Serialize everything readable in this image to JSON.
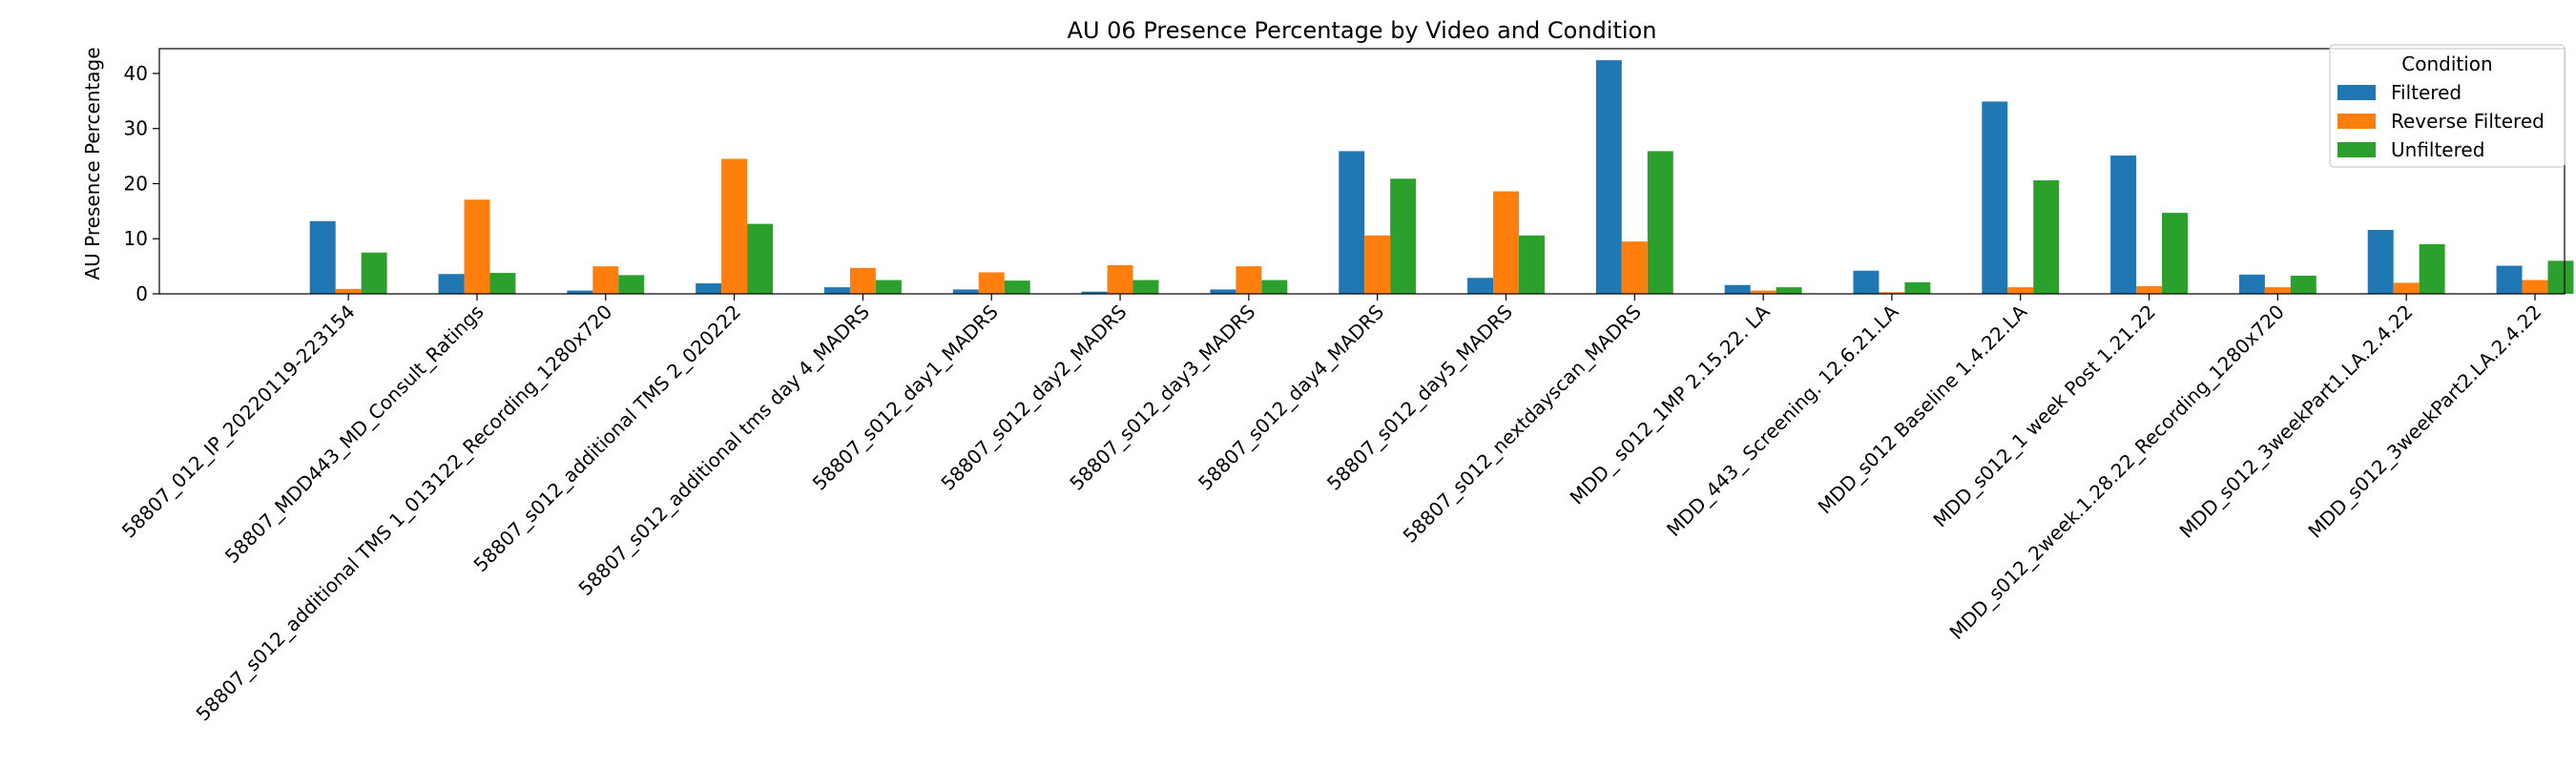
{
  "chart_data": {
    "type": "bar",
    "title": "AU 06 Presence Percentage by Video and Condition",
    "xlabel": "",
    "ylabel": "AU Presence Percentage",
    "ylim": [
      0,
      44.5
    ],
    "yticks": [
      0,
      10,
      20,
      30,
      40
    ],
    "grid": false,
    "legend": {
      "title": "Condition",
      "placement": "top-right"
    },
    "categories": [
      "58807_012_IP_20220119-223154",
      "58807_MDD443_MD_Consult_Ratings",
      "58807_s012_additional TMS 1_013122_Recording_1280x720",
      "58807_s012_additional TMS 2_020222",
      "58807_s012_additional tms day 4_MADRS",
      "58807_s012_day1_MADRS",
      "58807_s012_day2_MADRS",
      "58807_s012_day3_MADRS",
      "58807_s012_day4_MADRS",
      "58807_s012_day5_MADRS",
      "58807_s012_nextdayscan_MADRS",
      "MDD_ s012_1MP  2.15.22. LA",
      "MDD_443_ Screening. 12.6.21.LA",
      "MDD_s012 Baseline 1.4.22.LA",
      "MDD_s012_1 week Post 1.21.22",
      "MDD_s012_2week.1.28.22_Recording_1280x720",
      "MDD_s012_3weekPart1.LA.2.4.22",
      "MDD_s012_3weekPart2.LA.2.4.22"
    ],
    "series": [
      {
        "name": "Filtered",
        "color": "#1f77b4",
        "values": [
          13.2,
          3.6,
          0.6,
          1.9,
          1.2,
          0.8,
          0.4,
          0.8,
          25.9,
          2.9,
          42.4,
          1.6,
          4.2,
          34.9,
          25.1,
          3.5,
          11.6,
          5.1
        ]
      },
      {
        "name": "Reverse Filtered",
        "color": "#ff7f0e",
        "values": [
          0.9,
          17.1,
          5.0,
          24.5,
          4.7,
          3.9,
          5.2,
          5.0,
          10.6,
          18.6,
          9.5,
          0.6,
          0.3,
          1.2,
          1.4,
          1.2,
          2.0,
          2.5
        ]
      },
      {
        "name": "Unfiltered",
        "color": "#2ca02c",
        "values": [
          7.5,
          3.8,
          3.4,
          12.7,
          2.5,
          2.4,
          2.5,
          2.5,
          20.9,
          10.6,
          25.9,
          1.2,
          2.1,
          20.6,
          14.7,
          3.3,
          9.0,
          6.0
        ]
      }
    ]
  }
}
